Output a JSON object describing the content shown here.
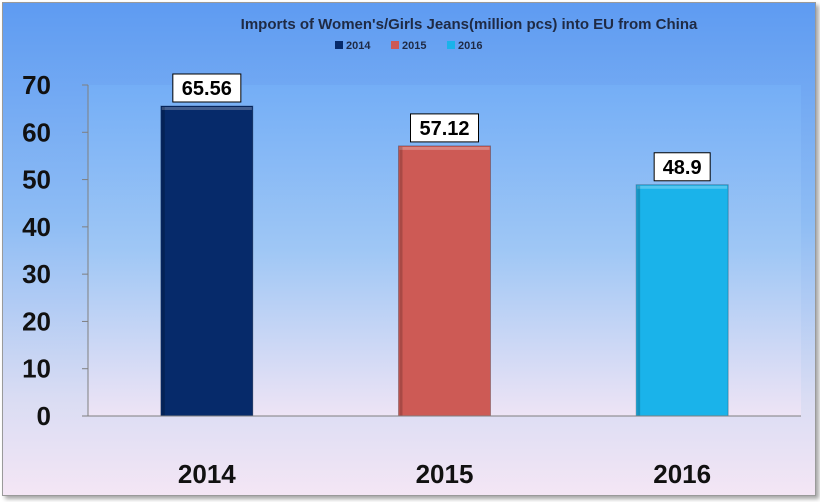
{
  "chart_data": {
    "type": "bar",
    "title": "Imports of Women's/Girls Jeans(million pcs) into EU from China",
    "categories": [
      "2014",
      "2015",
      "2016"
    ],
    "values": [
      65.56,
      57.12,
      48.9
    ],
    "data_labels": [
      "65.56",
      "57.12",
      "48.9"
    ],
    "legend": [
      "2014",
      "2015",
      "2016"
    ],
    "legend_placement": "top-center",
    "colors": [
      "#062a6a",
      "#cd5a55",
      "#1ab3ea"
    ],
    "ylim": [
      0,
      70
    ],
    "yticks": [
      "0",
      "10",
      "20",
      "30",
      "40",
      "50",
      "60",
      "70"
    ],
    "grid": false,
    "xlabel": "",
    "ylabel": ""
  }
}
